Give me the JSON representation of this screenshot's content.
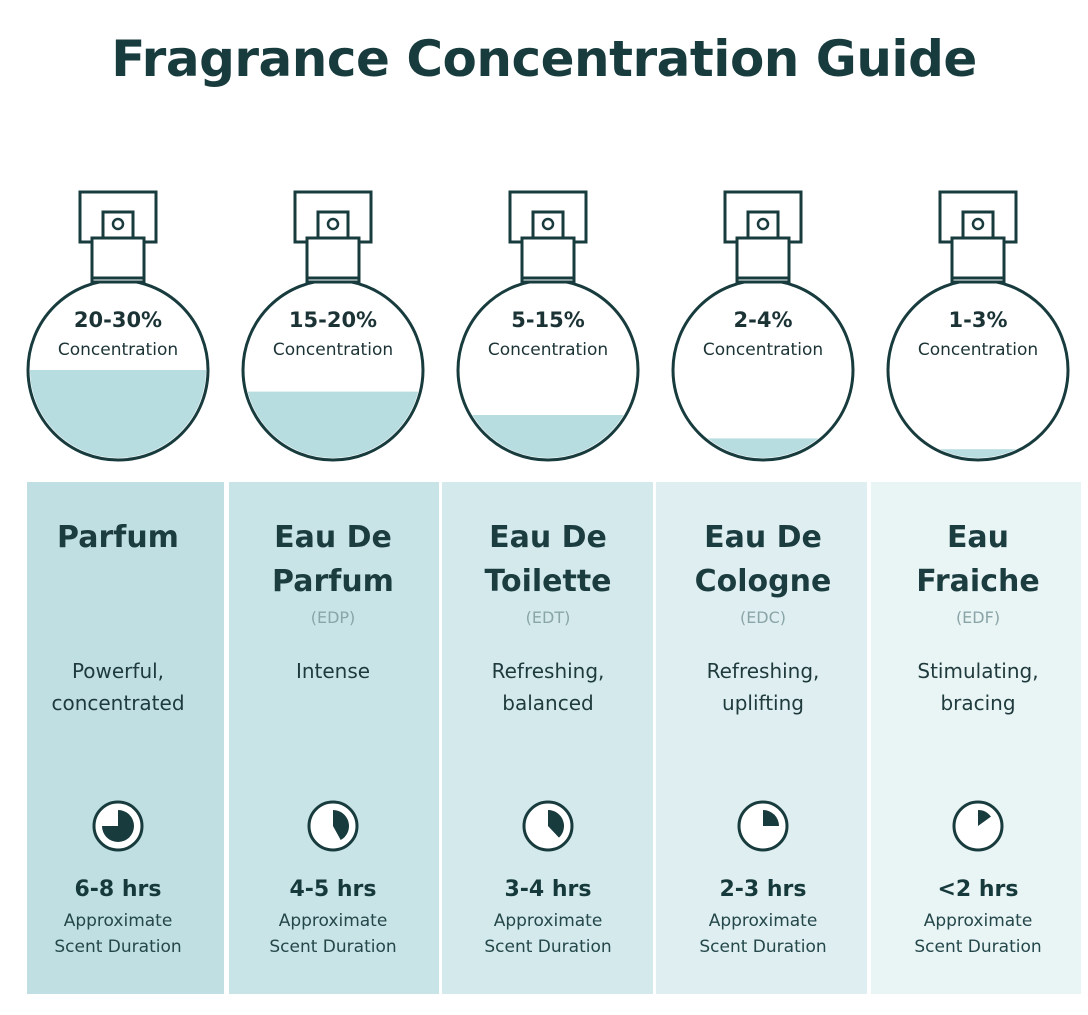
{
  "title": "Fragrance Concentration Guide",
  "colors": {
    "dark_teal": "#183b3d",
    "liquid": "#b8dde1",
    "panel_1": "#bfdfe2",
    "panel_2": "#c9e4e7",
    "panel_3": "#d3e9eb",
    "panel_4": "#dfeff1",
    "panel_5": "#e9f4f5"
  },
  "clock_icon": "clock-pie-icon",
  "bottle_icon": "perfume-bottle-icon",
  "items": [
    {
      "concentration": "20-30%",
      "concentration_label": "Concentration",
      "fill_level": 0.5,
      "name_line1": "Parfum",
      "name_line2": "",
      "abbr": "",
      "desc_line1": "Powerful,",
      "desc_line2": "concentrated",
      "duration_fraction": 0.75,
      "duration": "6-8 hrs",
      "duration_label1": "Approximate",
      "duration_label2": "Scent Duration"
    },
    {
      "concentration": "15-20%",
      "concentration_label": "Concentration",
      "fill_level": 0.38,
      "name_line1": "Eau De",
      "name_line2": "Parfum",
      "abbr": "(EDP)",
      "desc_line1": "Intense",
      "desc_line2": "",
      "duration_fraction": 0.42,
      "duration": "4-5 hrs",
      "duration_label1": "Approximate",
      "duration_label2": "Scent Duration"
    },
    {
      "concentration": "5-15%",
      "concentration_label": "Concentration",
      "fill_level": 0.25,
      "name_line1": "Eau De",
      "name_line2": "Toilette",
      "abbr": "(EDT)",
      "desc_line1": "Refreshing,",
      "desc_line2": "balanced",
      "duration_fraction": 0.38,
      "duration": "3-4 hrs",
      "duration_label1": "Approximate",
      "duration_label2": "Scent Duration"
    },
    {
      "concentration": "2-4%",
      "concentration_label": "Concentration",
      "fill_level": 0.12,
      "name_line1": "Eau De",
      "name_line2": "Cologne",
      "abbr": "(EDC)",
      "desc_line1": "Refreshing,",
      "desc_line2": "uplifting",
      "duration_fraction": 0.25,
      "duration": "2-3 hrs",
      "duration_label1": "Approximate",
      "duration_label2": "Scent Duration"
    },
    {
      "concentration": "1-3%",
      "concentration_label": "Concentration",
      "fill_level": 0.06,
      "name_line1": "Eau",
      "name_line2": "Fraiche",
      "abbr": "(EDF)",
      "desc_line1": "Stimulating,",
      "desc_line2": "bracing",
      "duration_fraction": 0.15,
      "duration": "<2 hrs",
      "duration_label1": "Approximate",
      "duration_label2": "Scent Duration"
    }
  ]
}
